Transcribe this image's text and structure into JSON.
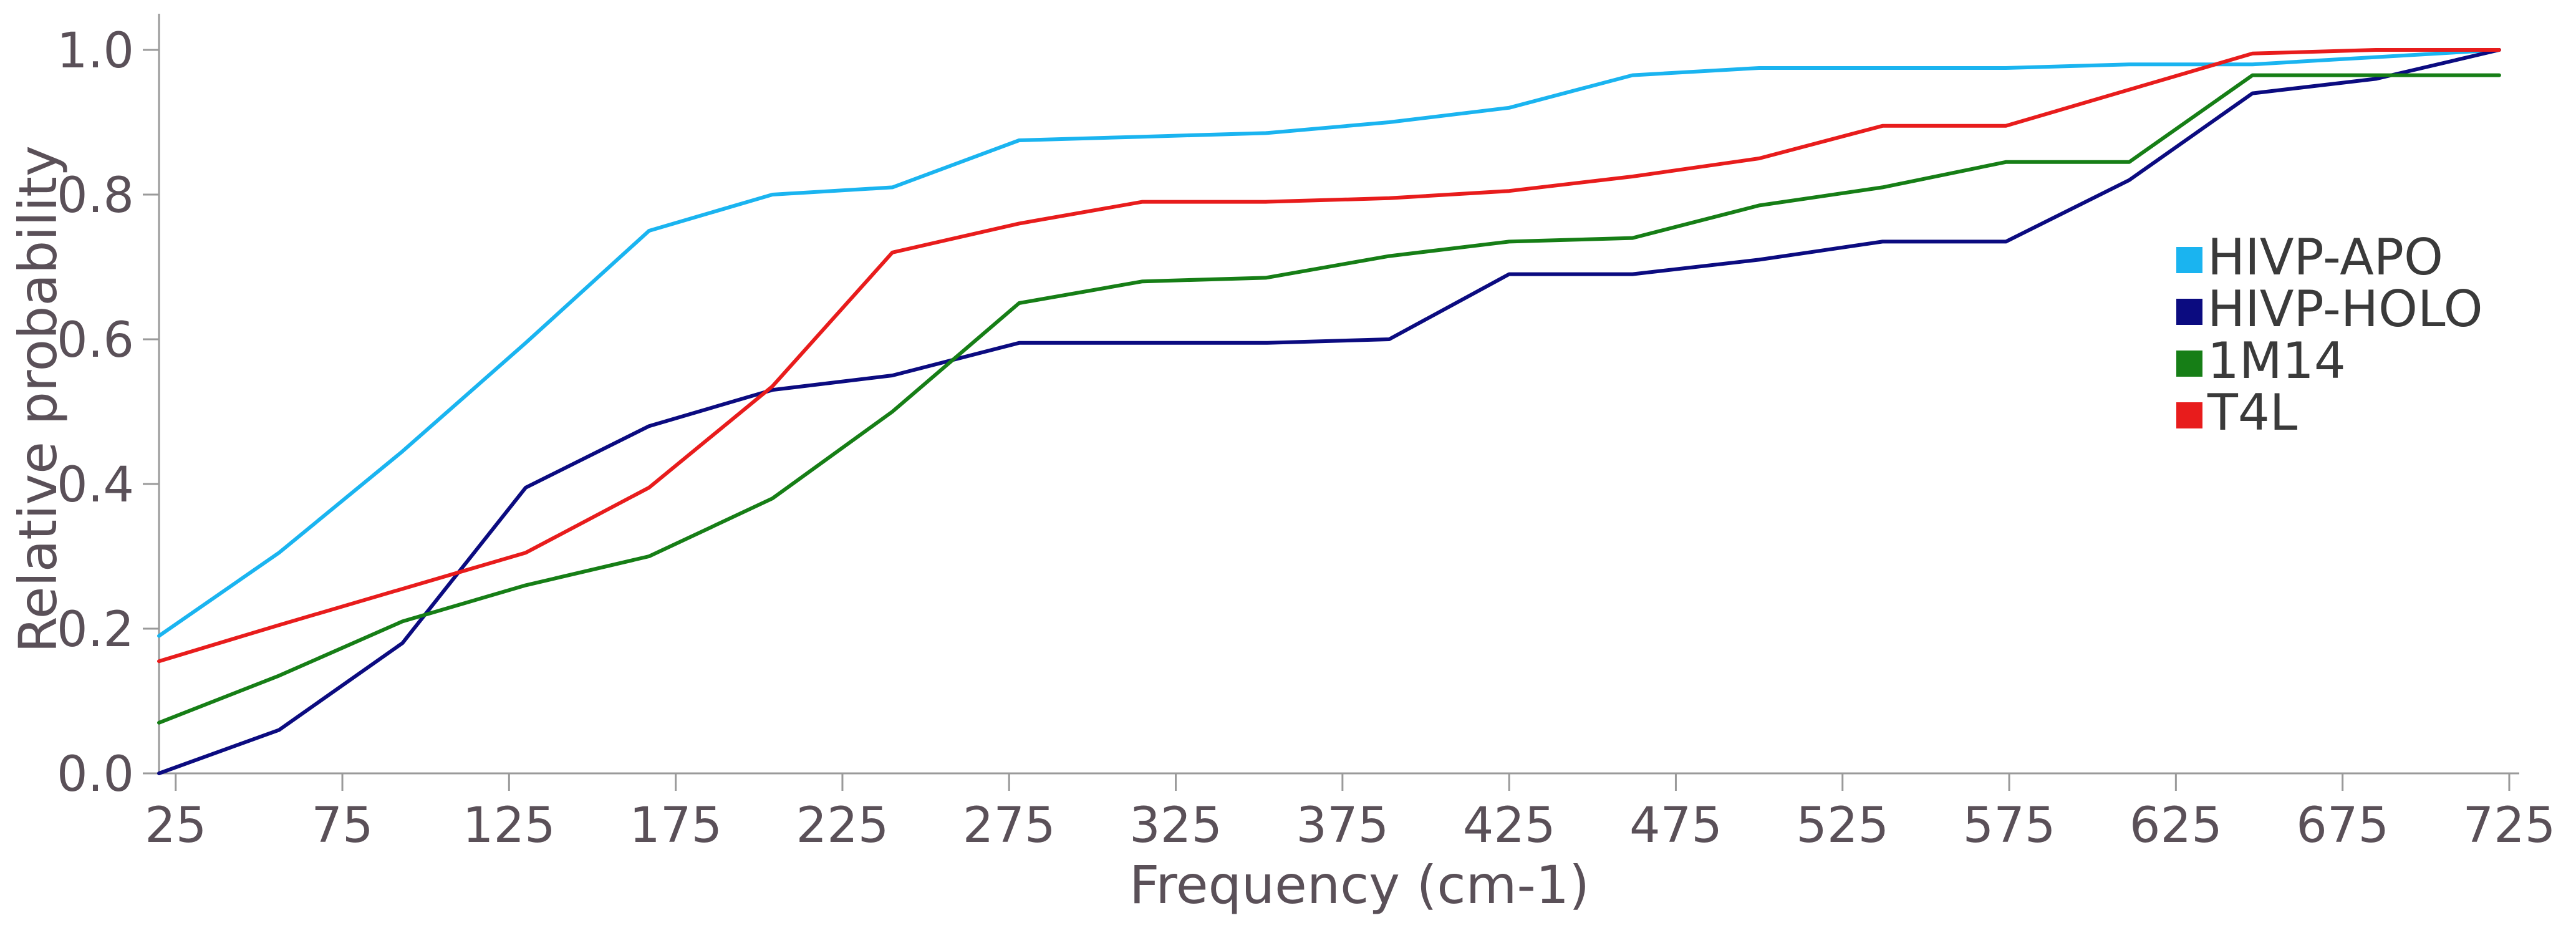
{
  "chart_data": {
    "type": "line",
    "xlabel": "Frequency  (cm-1)",
    "ylabel": "Relative probability",
    "xlim": [
      20,
      728
    ],
    "ylim": [
      0,
      1.05
    ],
    "xticks": [
      25,
      75,
      125,
      175,
      225,
      275,
      325,
      375,
      425,
      475,
      525,
      575,
      625,
      675,
      725
    ],
    "yticks": [
      0.0,
      0.2,
      0.4,
      0.6,
      0.8,
      1.0
    ],
    "ytick_labels": [
      "0.0",
      "0.2",
      "0.4",
      "0.6",
      "0.8",
      "1.0"
    ],
    "grid": false,
    "legend_position": "right",
    "series": [
      {
        "name": "HIVP-APO",
        "color": "#1ab4f0",
        "x": [
          20,
          56,
          93,
          130,
          167,
          204,
          240,
          278,
          315,
          352,
          389,
          425,
          462,
          500,
          537,
          574,
          611,
          648,
          685,
          722
        ],
        "y": [
          0.19,
          0.305,
          0.445,
          0.595,
          0.75,
          0.8,
          0.81,
          0.875,
          0.88,
          0.885,
          0.9,
          0.92,
          0.965,
          0.975,
          0.975,
          0.975,
          0.98,
          0.98,
          0.99,
          1.0
        ]
      },
      {
        "name": "HIVP-HOLO",
        "color": "#0b0b80",
        "x": [
          20,
          56,
          93,
          130,
          167,
          204,
          240,
          278,
          315,
          352,
          389,
          425,
          462,
          500,
          537,
          574,
          611,
          648,
          685,
          722
        ],
        "y": [
          0.0,
          0.06,
          0.18,
          0.395,
          0.48,
          0.53,
          0.55,
          0.595,
          0.595,
          0.595,
          0.6,
          0.69,
          0.69,
          0.71,
          0.735,
          0.735,
          0.82,
          0.94,
          0.96,
          1.0
        ]
      },
      {
        "name": "1M14",
        "color": "#167e16",
        "x": [
          20,
          56,
          93,
          130,
          167,
          204,
          240,
          278,
          315,
          352,
          389,
          425,
          462,
          500,
          537,
          574,
          611,
          648,
          685,
          722
        ],
        "y": [
          0.07,
          0.135,
          0.21,
          0.26,
          0.3,
          0.38,
          0.5,
          0.65,
          0.68,
          0.685,
          0.715,
          0.735,
          0.74,
          0.785,
          0.81,
          0.845,
          0.845,
          0.965,
          0.965,
          0.965
        ]
      },
      {
        "name": "T4L",
        "color": "#e81c1c",
        "x": [
          20,
          56,
          93,
          130,
          167,
          204,
          240,
          278,
          315,
          352,
          389,
          425,
          462,
          500,
          537,
          574,
          611,
          648,
          685,
          722
        ],
        "y": [
          0.155,
          0.205,
          0.255,
          0.305,
          0.395,
          0.535,
          0.72,
          0.76,
          0.79,
          0.79,
          0.795,
          0.805,
          0.825,
          0.85,
          0.895,
          0.895,
          0.945,
          0.995,
          1.0,
          1.0
        ]
      }
    ]
  }
}
